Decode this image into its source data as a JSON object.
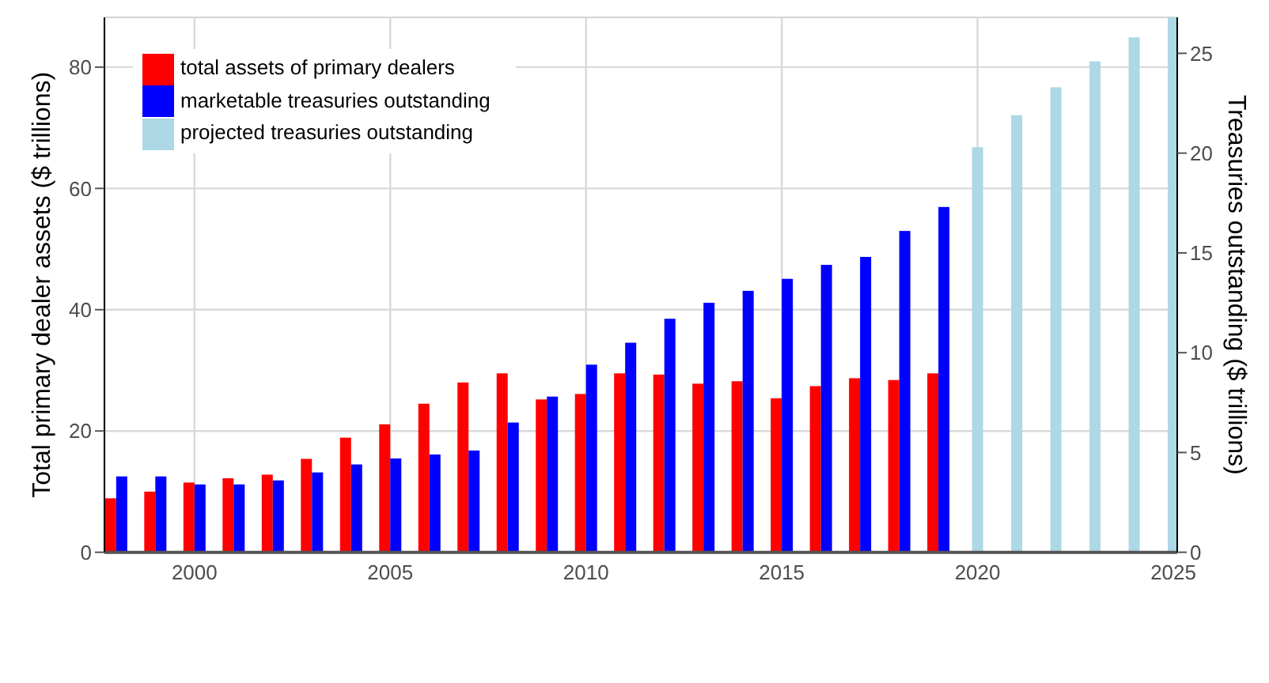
{
  "chart_data": {
    "type": "bar",
    "xlabel": null,
    "ylabel": "Total primary dealer assets ($ trillions)",
    "y2label": "Treasuries outstanding ($ trillions)",
    "x": [
      1998,
      1999,
      2000,
      2001,
      2002,
      2003,
      2004,
      2005,
      2006,
      2007,
      2008,
      2009,
      2010,
      2011,
      2012,
      2013,
      2014,
      2015,
      2016,
      2017,
      2018,
      2019,
      2020,
      2021,
      2022,
      2023,
      2024,
      2025
    ],
    "series": [
      {
        "name": "total assets of primary dealers",
        "color": "#ff0000",
        "values": [
          8.9,
          10.0,
          11.5,
          12.2,
          12.8,
          15.4,
          18.9,
          21.1,
          24.5,
          28.0,
          29.5,
          25.2,
          26.1,
          29.5,
          29.3,
          27.8,
          28.2,
          25.4,
          27.4,
          28.7,
          28.4,
          29.5,
          null,
          null,
          null,
          null,
          null,
          null
        ]
      },
      {
        "name": "marketable treasuries outstanding",
        "color": "#0000ff",
        "axis": "y2",
        "values": [
          3.8,
          3.8,
          3.4,
          3.4,
          3.6,
          4.0,
          4.4,
          4.7,
          4.9,
          5.1,
          6.5,
          7.8,
          9.4,
          10.5,
          11.7,
          12.5,
          13.1,
          13.7,
          14.4,
          14.8,
          16.1,
          17.3,
          null,
          null,
          null,
          null,
          null,
          null
        ]
      },
      {
        "name": "projected treasuries outstanding",
        "color": "#add8e6",
        "axis": "y2",
        "values": [
          null,
          null,
          null,
          null,
          null,
          null,
          null,
          null,
          null,
          null,
          null,
          null,
          null,
          null,
          null,
          null,
          null,
          null,
          null,
          null,
          null,
          null,
          20.3,
          21.9,
          23.3,
          24.6,
          25.8,
          26.8
        ]
      }
    ],
    "xlim": [
      1997.7,
      2025.1
    ],
    "xticks": [
      2000,
      2005,
      2010,
      2015,
      2020,
      2025
    ],
    "ylim": [
      0,
      88.2
    ],
    "yticks": [
      0,
      20,
      40,
      60,
      80
    ],
    "y2lim": [
      0,
      26.8
    ],
    "y2ticks": [
      0,
      5,
      10,
      15,
      20,
      25
    ],
    "grid": true,
    "legend": "top left"
  }
}
